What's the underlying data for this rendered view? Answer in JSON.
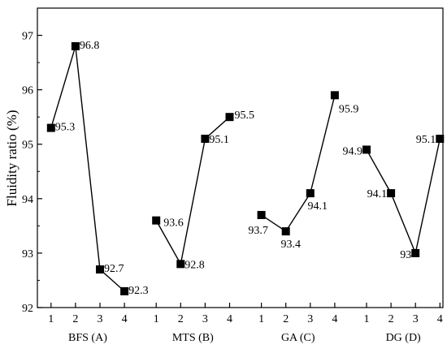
{
  "chart_data": {
    "type": "line",
    "ylabel": "Fluidity ratio (%)",
    "ylim": [
      92,
      97.5
    ],
    "yticks": [
      "92",
      "93",
      "94",
      "95",
      "96",
      "97"
    ],
    "grid": false,
    "groups": [
      {
        "name": "BFS (A)",
        "levels": [
          "1",
          "2",
          "3",
          "4"
        ],
        "values": [
          95.3,
          96.8,
          92.7,
          92.3
        ],
        "labels": [
          "95.3",
          "96.8",
          "92.7",
          "92.3"
        ]
      },
      {
        "name": "MTS (B)",
        "levels": [
          "1",
          "2",
          "3",
          "4"
        ],
        "values": [
          93.6,
          92.8,
          95.1,
          95.5
        ],
        "labels": [
          "93.6",
          "92.8",
          "95.1",
          "95.5"
        ]
      },
      {
        "name": "GA (C)",
        "levels": [
          "1",
          "2",
          "3",
          "4"
        ],
        "values": [
          93.7,
          93.4,
          94.1,
          95.9
        ],
        "labels": [
          "93.7",
          "93.4",
          "94.1",
          "95.9"
        ]
      },
      {
        "name": "DG (D)",
        "levels": [
          "1",
          "2",
          "3",
          "4"
        ],
        "values": [
          94.9,
          94.1,
          93.0,
          95.1
        ],
        "labels": [
          "94.9",
          "94.1",
          "93",
          "95.1"
        ]
      }
    ]
  }
}
